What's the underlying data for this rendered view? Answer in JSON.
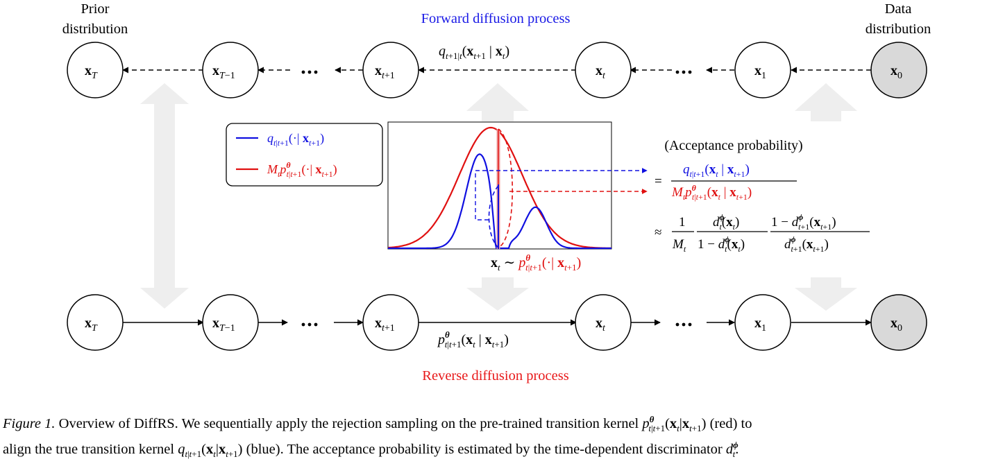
{
  "labels": {
    "prior_l1": "Prior",
    "prior_l2": "distribution",
    "data_l1": "Data",
    "data_l2": "distribution",
    "forward_title": "Forward diffusion process",
    "reverse_title": "Reverse diffusion process",
    "acceptance": "(Acceptance probability)"
  },
  "nodes": [
    "xT",
    "xT-1",
    "xt+1",
    "xt",
    "x1",
    "x0"
  ],
  "legend": {
    "blue": "q_{t|t+1}(· | x_{t+1})",
    "red": "M_t p^θ_{t|t+1}(· | x_{t+1})"
  },
  "colors": {
    "blue": "#1010e0",
    "red": "#e01010",
    "forward_title": "#1a1ae6",
    "reverse_title": "#e8191a",
    "node_fill_data": "#d9d9d9",
    "arrow_gray": "#eeeeee"
  },
  "caption": {
    "label": "Figure 1.",
    "line1_a": "Overview of DiffRS. We sequentially apply the rejection sampling on the pre-trained transition kernel",
    "line1_b": "(red) to",
    "line2_a": "align the true transition kernel",
    "line2_b": "(blue). The acceptance probability is estimated by the time-dependent discriminator"
  }
}
